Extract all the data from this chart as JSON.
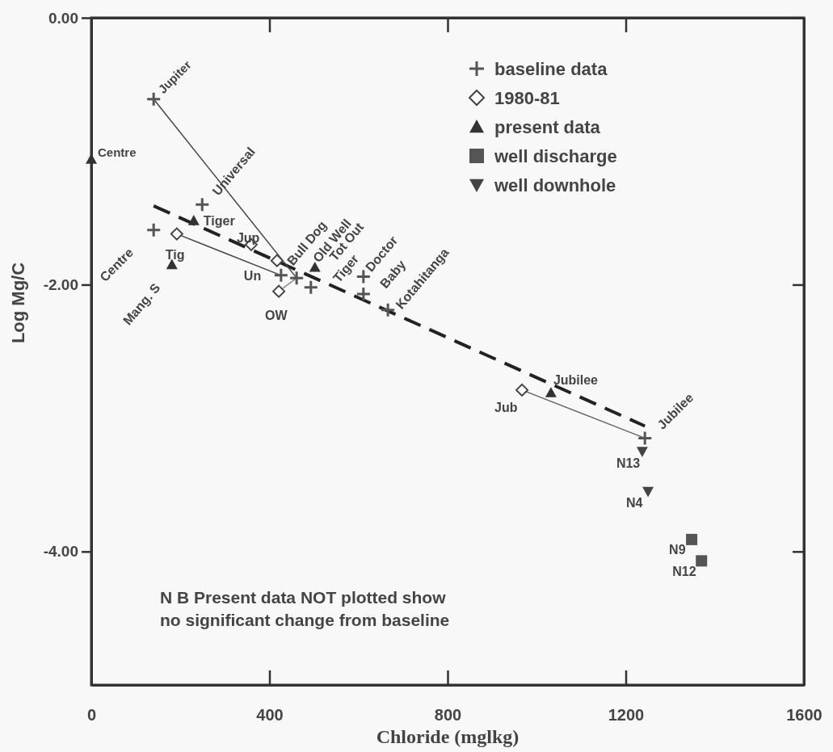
{
  "chart_data": {
    "type": "scatter",
    "xlabel": "Chloride (mglkg)",
    "ylabel": "Log Mg/C",
    "xlim": [
      0,
      1600
    ],
    "ylim": [
      -5,
      0
    ],
    "xticks": [
      0,
      400,
      800,
      1200,
      1600
    ],
    "yticks": [
      {
        "value": 0,
        "label": "0.00"
      },
      {
        "value": -2,
        "label": "-2.00"
      },
      {
        "value": -4,
        "label": "-4.00"
      }
    ],
    "legend": "top right",
    "series": [
      {
        "type": "line",
        "color": "#222222",
        "line_style": "dashed",
        "x": [
          140,
          1243
        ],
        "values": [
          -1.41,
          -3.06
        ]
      },
      {
        "type": "line",
        "color": "#444444",
        "line_style": "solid",
        "x": [
          140,
          461
        ],
        "values": [
          -0.61,
          -1.95
        ]
      },
      {
        "type": "line",
        "color": "#444444",
        "line_style": "solid",
        "x": [
          192,
          426
        ],
        "values": [
          -1.62,
          -1.93
        ]
      },
      {
        "type": "line",
        "color": "#888888",
        "line_style": "solid",
        "x": [
          421,
          461
        ],
        "values": [
          -2.05,
          -1.95
        ]
      },
      {
        "type": "line",
        "color": "#666666",
        "line_style": "solid",
        "x": [
          967,
          1243
        ],
        "values": [
          -2.79,
          -3.15
        ]
      },
      {
        "name": "baseline data",
        "marker": "cross",
        "color": "#555555",
        "x": [
          140,
          140,
          249,
          426,
          461,
          493,
          611,
          611,
          666,
          1243
        ],
        "values": [
          -0.61,
          -1.59,
          -1.4,
          -1.93,
          -1.95,
          -2.02,
          -1.94,
          -2.07,
          -2.19,
          -3.15
        ]
      },
      {
        "name": "1980-81",
        "marker": "diamond",
        "color": "#444444",
        "x": [
          192,
          359,
          417,
          421,
          967
        ],
        "values": [
          -1.62,
          -1.7,
          -1.82,
          -2.05,
          -2.79
        ]
      },
      {
        "name": "present data",
        "marker": "triangle",
        "color": "#333333",
        "x": [
          0,
          230,
          181,
          502,
          1032
        ],
        "values": [
          -1.06,
          -1.52,
          -1.85,
          -1.87,
          -2.81
        ]
      },
      {
        "name": "well discharge",
        "marker": "square",
        "color": "#555555",
        "x": [
          1348,
          1370
        ],
        "values": [
          -3.91,
          -4.07
        ]
      },
      {
        "name": "well downhole",
        "marker": "triangle-down",
        "color": "#444444",
        "x": [
          1237,
          1250
        ],
        "values": [
          -3.25,
          -3.55
        ]
      }
    ],
    "annotations": [
      {
        "text": "Jupiter",
        "x": 140,
        "y": -0.61
      },
      {
        "text": "Centre",
        "x": 0,
        "y": -1.06
      },
      {
        "text": "Universal",
        "x": 249,
        "y": -1.4
      },
      {
        "text": "Tiger",
        "x": 230,
        "y": -1.52
      },
      {
        "text": "Jup",
        "x": 359,
        "y": -1.7
      },
      {
        "text": "Centre",
        "x": 140,
        "y": -1.59
      },
      {
        "text": "Tig",
        "x": 192,
        "y": -1.62
      },
      {
        "text": "Mang. S",
        "x": 181,
        "y": -1.85
      },
      {
        "text": "Un",
        "x": 426,
        "y": -1.93
      },
      {
        "text": "OW",
        "x": 421,
        "y": -2.05
      },
      {
        "text": "Bull Dog",
        "x": 417,
        "y": -1.82
      },
      {
        "text": "Old Well",
        "x": 502,
        "y": -1.87
      },
      {
        "text": "Tot Out",
        "x": 461,
        "y": -1.95
      },
      {
        "text": "Tiger",
        "x": 493,
        "y": -2.02
      },
      {
        "text": "Doctor",
        "x": 611,
        "y": -1.94
      },
      {
        "text": "Baby",
        "x": 611,
        "y": -2.07
      },
      {
        "text": "Kotahitanga",
        "x": 666,
        "y": -2.19
      },
      {
        "text": "Jubilee",
        "x": 1032,
        "y": -2.81
      },
      {
        "text": "Jub",
        "x": 967,
        "y": -2.79
      },
      {
        "text": "Jubilee",
        "x": 1243,
        "y": -3.15
      },
      {
        "text": "N13",
        "x": 1237,
        "y": -3.25
      },
      {
        "text": "N4",
        "x": 1250,
        "y": -3.55
      },
      {
        "text": "N9",
        "x": 1348,
        "y": -3.91
      },
      {
        "text": "N12",
        "x": 1370,
        "y": -4.07
      },
      "N B Present data NOT plotted show no significant change from baseline"
    ]
  }
}
